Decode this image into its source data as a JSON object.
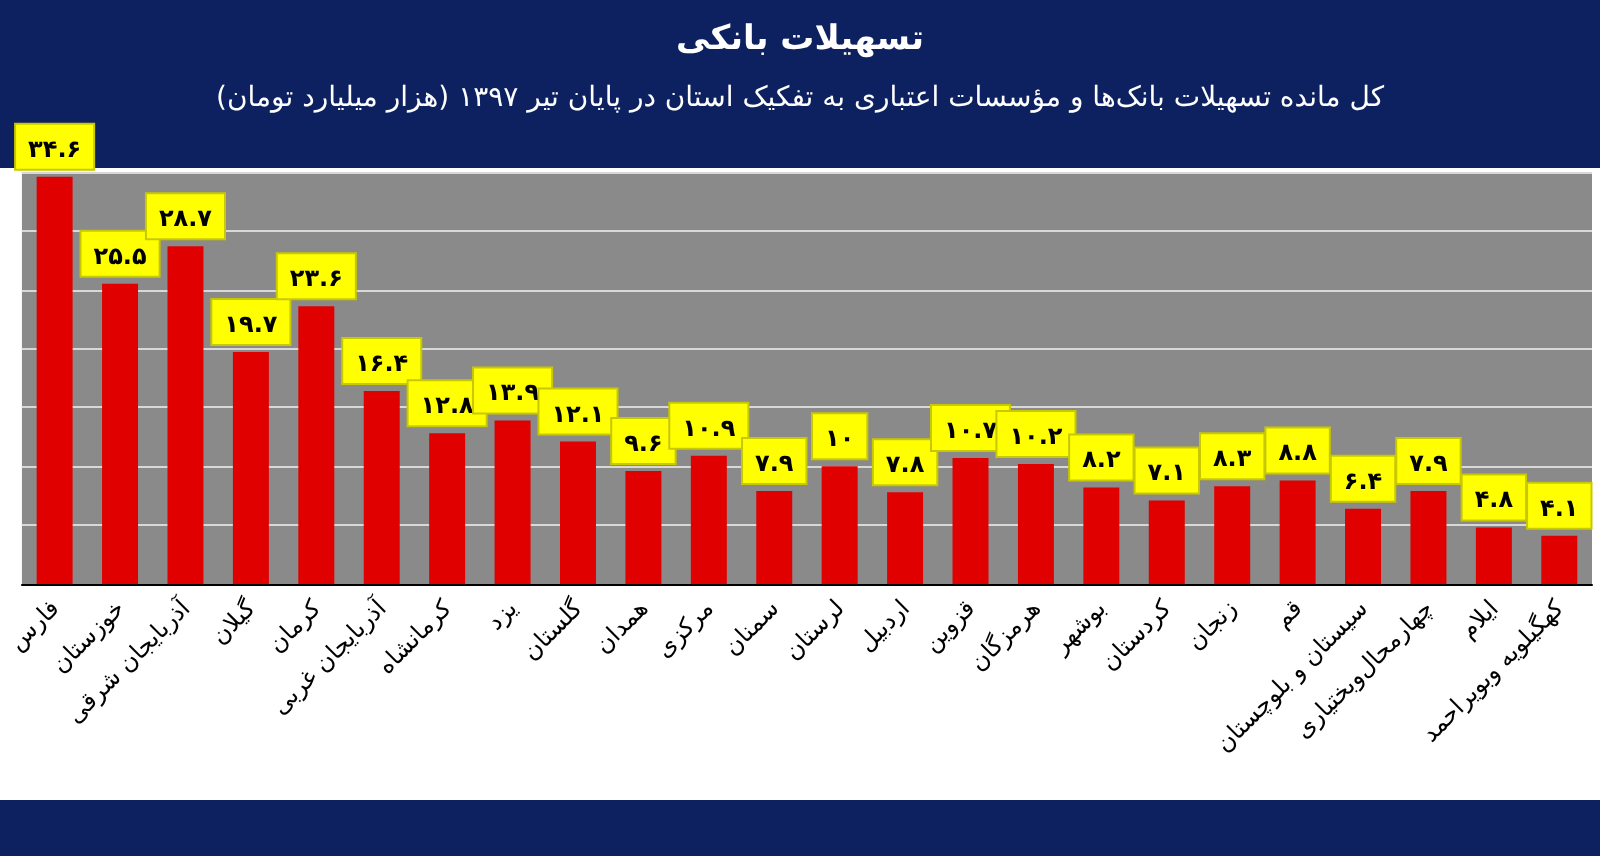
{
  "chart_data": {
    "type": "bar",
    "title": "تسهیلات بانکی",
    "subtitle": "کل مانده تسهیلات بانک‌ها و مؤسسات اعتباری به تفکیک استان در پایان تیر ۱۳۹۷ (هزار میلیارد تومان)",
    "categories": [
      "فارس",
      "خوزستان",
      "آذربایجان شرقی",
      "گیلان",
      "کرمان",
      "آذربایجان غربی",
      "کرمانشاه",
      "یزد",
      "گلستان",
      "همدان",
      "مرکزی",
      "سمنان",
      "لرستان",
      "اردبیل",
      "قزوین",
      "هرمزگان",
      "بوشهر",
      "کردستان",
      "زنجان",
      "قم",
      "سیستان و بلوچستان",
      "چهارمحال‌وبختیاری",
      "ایلام",
      "کهگیلویه وبویراحمد"
    ],
    "values": [
      34.6,
      25.5,
      28.7,
      19.7,
      23.6,
      16.4,
      12.8,
      13.9,
      12.1,
      9.6,
      10.9,
      7.9,
      10,
      7.8,
      10.7,
      10.2,
      8.2,
      7.1,
      8.3,
      8.8,
      6.4,
      7.9,
      4.8,
      4.1
    ],
    "value_labels": [
      "۳۴.۶",
      "۲۵.۵",
      "۲۸.۷",
      "۱۹.۷",
      "۲۳.۶",
      "۱۶.۴",
      "۱۲.۸",
      "۱۳.۹",
      "۱۲.۱",
      "۹.۶",
      "۱۰.۹",
      "۷.۹",
      "۱۰",
      "۷.۸",
      "۱۰.۷",
      "۱۰.۲",
      "۸.۲",
      "۷.۱",
      "۸.۳",
      "۸.۸",
      "۶.۴",
      "۷.۹",
      "۴.۸",
      "۴.۱"
    ],
    "color": "#e00000",
    "grid": "y",
    "tick_labels": "x"
  }
}
